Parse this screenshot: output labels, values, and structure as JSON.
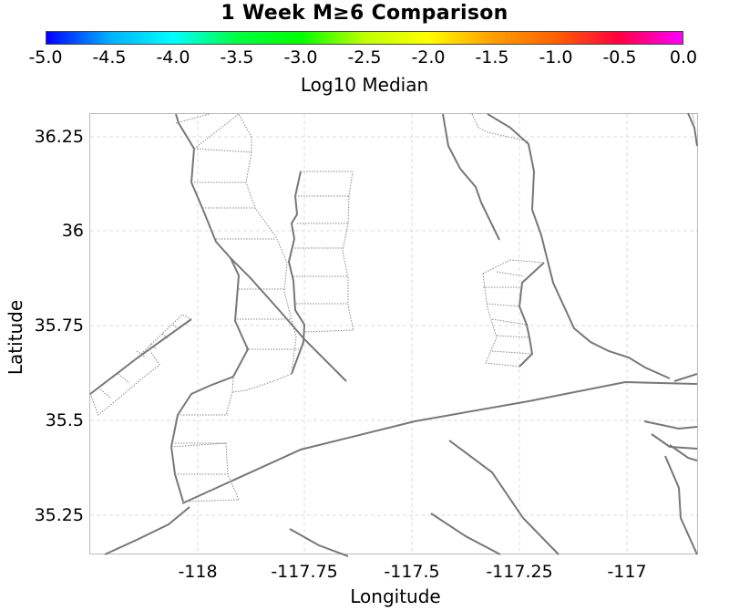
{
  "title": "1 Week M≥6 Comparison",
  "colorbar": {
    "label": "Log10 Median",
    "ticks": [
      "-5.0",
      "-4.5",
      "-4.0",
      "-3.5",
      "-3.0",
      "-2.5",
      "-2.0",
      "-1.5",
      "-1.0",
      "-0.5",
      "0.0"
    ],
    "stops": [
      "#0000ff",
      "#00b0ff",
      "#00ffff",
      "#00ff40",
      "#00ff00",
      "#bfff00",
      "#ffff00",
      "#ffa000",
      "#ff6000",
      "#ff0040",
      "#ff00ff"
    ]
  },
  "axes": {
    "xlabel": "Longitude",
    "ylabel": "Latitude",
    "xticks": [
      "-118",
      "-117.75",
      "-117.5",
      "-117.25",
      "-117"
    ],
    "yticks": [
      "36.25",
      "36",
      "35.75",
      "35.5",
      "35.25"
    ]
  },
  "colors": {
    "fault_line": "#777777",
    "fault_detail": "#888888",
    "grid": "#dddddd"
  }
}
